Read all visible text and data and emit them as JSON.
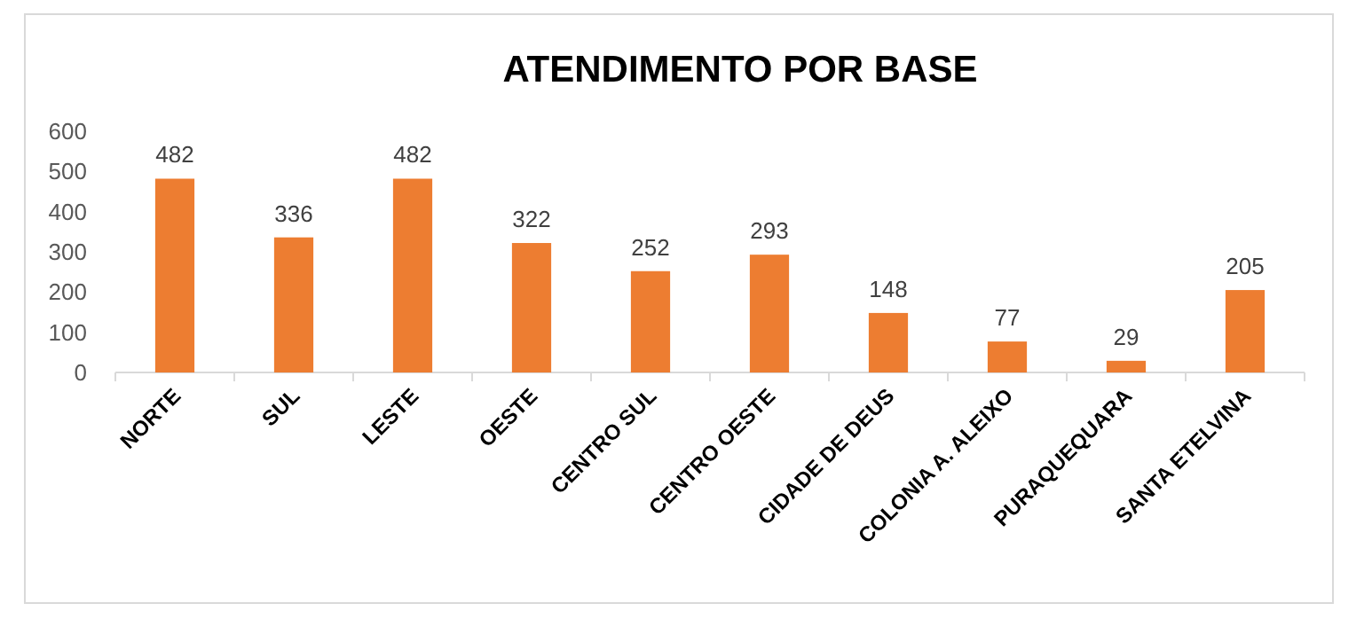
{
  "chart_data": {
    "type": "bar",
    "title": "ATENDIMENTO POR BASE",
    "categories": [
      "NORTE",
      "SUL",
      "LESTE",
      "OESTE",
      "CENTRO SUL",
      "CENTRO OESTE",
      "CIDADE DE DEUS",
      "COLONIA A. ALEIXO",
      "PURAQUEQUARA",
      "SANTA ETELVINA"
    ],
    "values": [
      482,
      336,
      482,
      322,
      252,
      293,
      148,
      77,
      29,
      205
    ],
    "color": "#ed7d31",
    "ylim": [
      0,
      600
    ],
    "yticks": [
      0,
      100,
      200,
      300,
      400,
      500,
      600
    ],
    "grid": false,
    "data_labels": true
  }
}
